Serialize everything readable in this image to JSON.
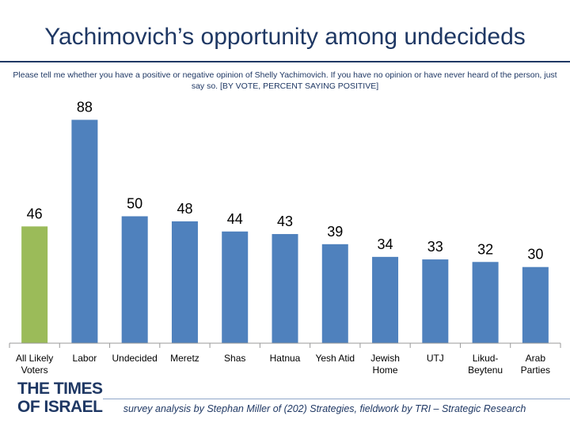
{
  "title": "Yachimovich’s opportunity among undecideds",
  "subtitle": "Please tell me whether you have a positive or negative opinion of Shelly Yachimovich. If you have no opinion or have never heard of the person, just say so. [BY VOTE, PERCENT SAYING POSITIVE]",
  "logo_lines": [
    "THE TIMES",
    "OF ISRAEL"
  ],
  "footer": "survey analysis by Stephan Miller of (202) Strategies, fieldwork by TRI – Strategic Research",
  "colors": {
    "highlight": "#9bbb59",
    "bar": "#4f81bd",
    "title": "#1f3864"
  },
  "chart_data": {
    "type": "bar",
    "categories": [
      [
        "All Likely",
        "Voters"
      ],
      [
        "Labor"
      ],
      [
        "Undecided"
      ],
      [
        "Meretz"
      ],
      [
        "Shas"
      ],
      [
        "Hatnua"
      ],
      [
        "Yesh Atid"
      ],
      [
        "Jewish",
        "Home"
      ],
      [
        "UTJ"
      ],
      [
        "Likud-",
        "Beytenu"
      ],
      [
        "Arab",
        "Parties"
      ]
    ],
    "values": [
      46,
      88,
      50,
      48,
      44,
      43,
      39,
      34,
      33,
      32,
      30
    ],
    "highlight_index": 0,
    "ylim": [
      0,
      100
    ],
    "grid": false,
    "legend": "none"
  }
}
